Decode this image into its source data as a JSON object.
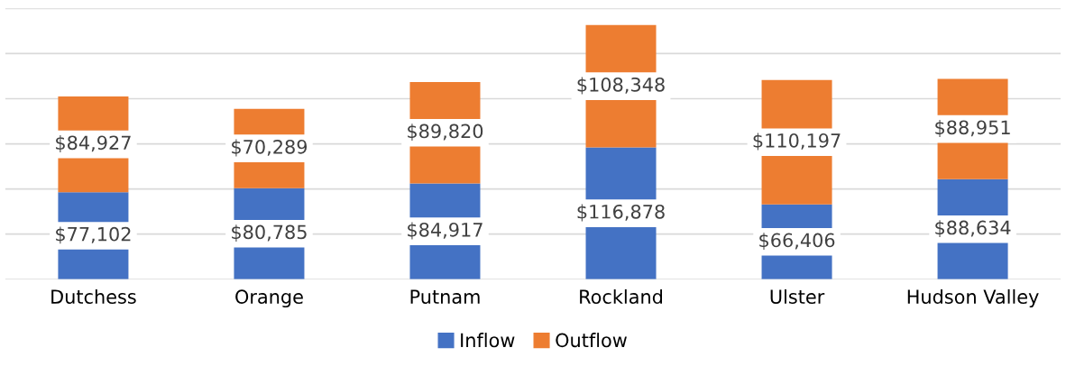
{
  "chart_data": {
    "type": "bar",
    "stacked": true,
    "categories": [
      "Dutchess",
      "Orange",
      "Putnam",
      "Rockland",
      "Ulster",
      "Hudson Valley"
    ],
    "series": [
      {
        "name": "Inflow",
        "color": "#4472c4",
        "values": [
          77102,
          80785,
          84917,
          116878,
          66406,
          88634
        ],
        "value_labels": [
          "$77,102",
          "$80,785",
          "$84,917",
          "$116,878",
          "$66,406",
          "$88,634"
        ]
      },
      {
        "name": "Outflow",
        "color": "#ed7d31",
        "values": [
          84927,
          70289,
          89820,
          108348,
          110197,
          88951
        ],
        "value_labels": [
          "$84,927",
          "$70,289",
          "$89,820",
          "$108,348",
          "$110,197",
          "$88,951"
        ]
      }
    ],
    "ylim": [
      0,
      240000
    ],
    "yticks": [
      {
        "value": 0,
        "label": null
      },
      {
        "value": 40000,
        "label": null
      },
      {
        "value": 80000,
        "label": null
      },
      {
        "value": 120000,
        "label": null
      },
      {
        "value": 160000,
        "label": null
      },
      {
        "value": 200000,
        "label": null
      },
      {
        "value": 240000,
        "label": null
      }
    ],
    "tick_labels": "x",
    "grid": "y",
    "legend": "bottom"
  }
}
